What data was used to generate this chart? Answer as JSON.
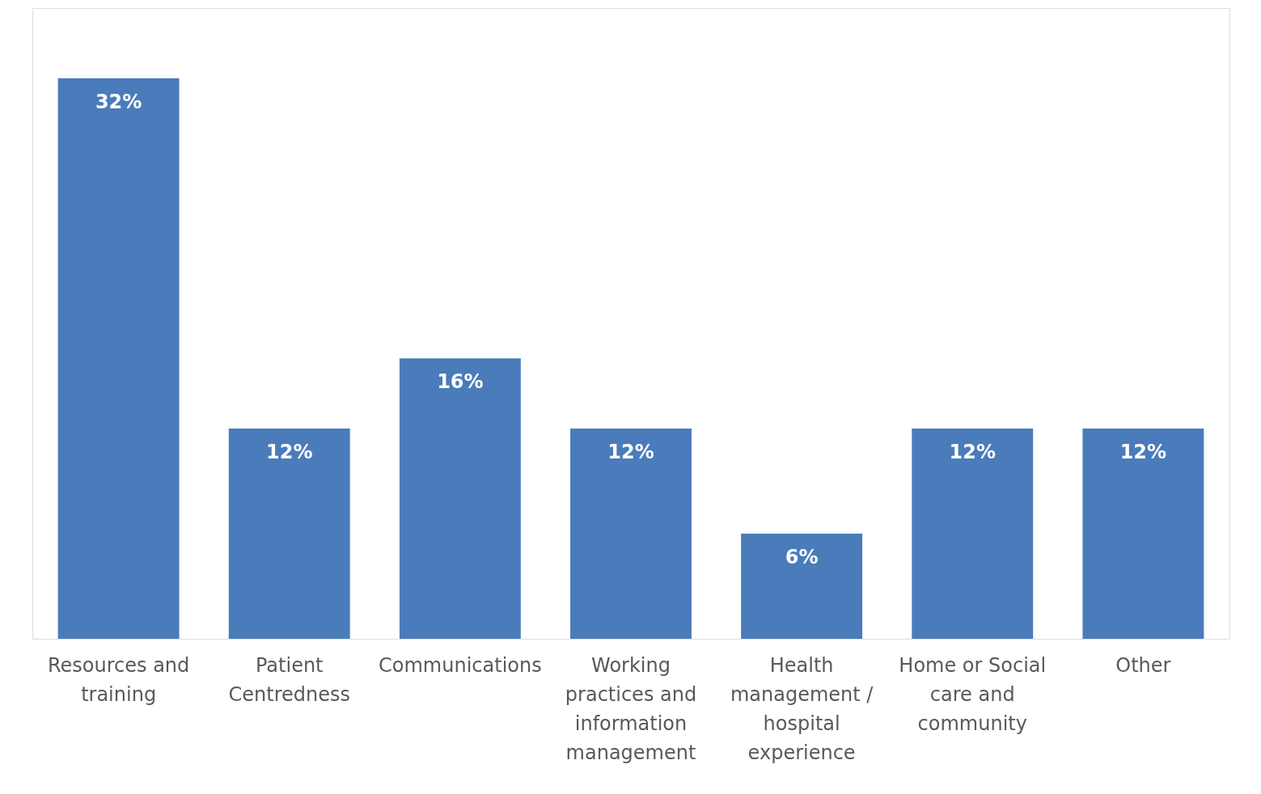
{
  "chart_data": {
    "type": "bar",
    "categories": [
      "Resources and training",
      "Patient Centredness",
      "Communications",
      "Working practices and information management",
      "Health management / hospital experience",
      "Home or Social care and community",
      "Other"
    ],
    "values": [
      32,
      12,
      16,
      12,
      6,
      12,
      12
    ],
    "value_labels": [
      "32%",
      "12%",
      "16%",
      "12%",
      "6%",
      "12%",
      "12%"
    ],
    "color": "#4a7bbb",
    "ylim": [
      0,
      36
    ],
    "tick_labels": "x"
  }
}
